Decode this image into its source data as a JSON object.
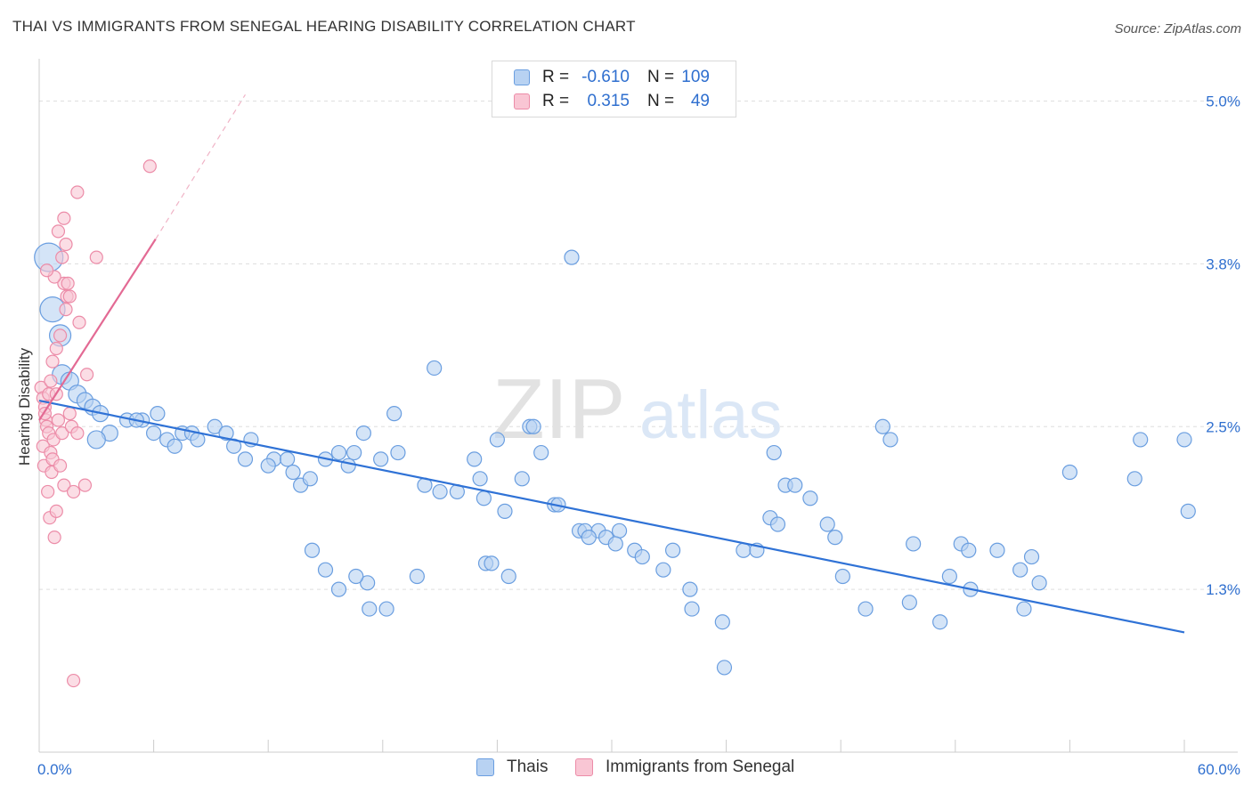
{
  "title": "THAI VS IMMIGRANTS FROM SENEGAL HEARING DISABILITY CORRELATION CHART",
  "source": "Source: ZipAtlas.com",
  "watermark": {
    "zip": "ZIP",
    "atlas": "atlas"
  },
  "colors": {
    "thai_fill": "#b8d2f2",
    "thai_stroke": "#6a9ee0",
    "thai_line": "#2f72d6",
    "senegal_fill": "#f9c6d4",
    "senegal_stroke": "#ec8ca8",
    "senegal_line": "#e36a94",
    "accent_text": "#2f6fcf",
    "grid": "#dddddd"
  },
  "stats_legend": {
    "rows": [
      {
        "r_label": "R =",
        "r_value": "-0.610",
        "n_label": "N =",
        "n_value": "109"
      },
      {
        "r_label": "R =",
        "r_value": "0.315",
        "n_label": "N =",
        "n_value": "49"
      }
    ]
  },
  "bottom_legend": {
    "thai": "Thais",
    "senegal": "Immigrants from Senegal"
  },
  "chart_data": {
    "type": "scatter",
    "title": "THAI VS IMMIGRANTS FROM SENEGAL HEARING DISABILITY CORRELATION CHART",
    "xlabel": "",
    "ylabel": "Hearing Disability",
    "xlim": [
      0,
      60
    ],
    "ylim": [
      0,
      5.25
    ],
    "x_tick_labels": [
      "0.0%",
      "60.0%"
    ],
    "y_ticks": [
      {
        "value": 1.25,
        "label": "1.3%"
      },
      {
        "value": 2.5,
        "label": "2.5%"
      },
      {
        "value": 3.75,
        "label": "3.8%"
      },
      {
        "value": 5.0,
        "label": "5.0%"
      }
    ],
    "series": [
      {
        "name": "Thais",
        "r": -0.61,
        "n": 109,
        "trend": {
          "x0": 0,
          "y0": 2.7,
          "x1": 60,
          "y1": 0.92
        },
        "points": [
          [
            0.5,
            3.8,
            16
          ],
          [
            0.7,
            3.4,
            14
          ],
          [
            1.1,
            3.2,
            12
          ],
          [
            1.2,
            2.9,
            11
          ],
          [
            1.6,
            2.85,
            10
          ],
          [
            2.0,
            2.75,
            10
          ],
          [
            2.4,
            2.7,
            9
          ],
          [
            2.8,
            2.65,
            9
          ],
          [
            3.2,
            2.6,
            9
          ],
          [
            3.7,
            2.45,
            9
          ],
          [
            3.0,
            2.4,
            10
          ],
          [
            4.6,
            2.55,
            8
          ],
          [
            5.4,
            2.55,
            8
          ],
          [
            5.1,
            2.55,
            8
          ],
          [
            6.2,
            2.6,
            8
          ],
          [
            6.0,
            2.45,
            8
          ],
          [
            7.5,
            2.45,
            8
          ],
          [
            8.0,
            2.45,
            8
          ],
          [
            6.7,
            2.4,
            8
          ],
          [
            7.1,
            2.35,
            8
          ],
          [
            8.3,
            2.4,
            8
          ],
          [
            9.2,
            2.5,
            8
          ],
          [
            9.8,
            2.45,
            8
          ],
          [
            10.2,
            2.35,
            8
          ],
          [
            11.1,
            2.4,
            8
          ],
          [
            10.8,
            2.25,
            8
          ],
          [
            12.3,
            2.25,
            8
          ],
          [
            12.0,
            2.2,
            8
          ],
          [
            13.0,
            2.25,
            8
          ],
          [
            13.3,
            2.15,
            8
          ],
          [
            13.7,
            2.05,
            8
          ],
          [
            14.2,
            2.1,
            8
          ],
          [
            15.0,
            2.25,
            8
          ],
          [
            15.7,
            2.3,
            8
          ],
          [
            16.2,
            2.2,
            8
          ],
          [
            16.5,
            2.3,
            8
          ],
          [
            17.0,
            2.45,
            8
          ],
          [
            17.9,
            2.25,
            8
          ],
          [
            18.8,
            2.3,
            8
          ],
          [
            18.6,
            2.6,
            8
          ],
          [
            20.7,
            2.95,
            8
          ],
          [
            20.2,
            2.05,
            8
          ],
          [
            21.0,
            2.0,
            8
          ],
          [
            21.9,
            2.0,
            8
          ],
          [
            22.8,
            2.25,
            8
          ],
          [
            23.1,
            2.1,
            8
          ],
          [
            23.3,
            1.95,
            8
          ],
          [
            24.0,
            2.4,
            8
          ],
          [
            24.4,
            1.85,
            8
          ],
          [
            25.3,
            2.1,
            8
          ],
          [
            25.7,
            2.5,
            8
          ],
          [
            25.9,
            2.5,
            8
          ],
          [
            26.3,
            2.3,
            8
          ],
          [
            27.0,
            1.9,
            8
          ],
          [
            27.2,
            1.9,
            8
          ],
          [
            27.9,
            3.8,
            8
          ],
          [
            28.3,
            1.7,
            8
          ],
          [
            28.6,
            1.7,
            8
          ],
          [
            29.3,
            1.7,
            8
          ],
          [
            29.7,
            1.65,
            8
          ],
          [
            30.4,
            1.7,
            8
          ],
          [
            19.8,
            1.35,
            8
          ],
          [
            17.2,
            1.3,
            8
          ],
          [
            15.0,
            1.4,
            8
          ],
          [
            14.3,
            1.55,
            8
          ],
          [
            15.7,
            1.25,
            8
          ],
          [
            16.6,
            1.35,
            8
          ],
          [
            17.3,
            1.1,
            8
          ],
          [
            18.2,
            1.1,
            8
          ],
          [
            23.4,
            1.45,
            8
          ],
          [
            23.7,
            1.45,
            8
          ],
          [
            24.6,
            1.35,
            8
          ],
          [
            28.8,
            1.65,
            8
          ],
          [
            30.2,
            1.6,
            8
          ],
          [
            31.2,
            1.55,
            8
          ],
          [
            31.6,
            1.5,
            8
          ],
          [
            32.7,
            1.4,
            8
          ],
          [
            33.2,
            1.55,
            8
          ],
          [
            34.1,
            1.25,
            8
          ],
          [
            34.2,
            1.1,
            8
          ],
          [
            35.8,
            1.0,
            8
          ],
          [
            35.9,
            0.65,
            8
          ],
          [
            36.9,
            1.55,
            8
          ],
          [
            37.6,
            1.55,
            8
          ],
          [
            38.3,
            1.8,
            8
          ],
          [
            38.7,
            1.75,
            8
          ],
          [
            38.5,
            2.3,
            8
          ],
          [
            39.1,
            2.05,
            8
          ],
          [
            39.6,
            2.05,
            8
          ],
          [
            40.4,
            1.95,
            8
          ],
          [
            41.3,
            1.75,
            8
          ],
          [
            41.7,
            1.65,
            8
          ],
          [
            42.1,
            1.35,
            8
          ],
          [
            43.3,
            1.1,
            8
          ],
          [
            44.2,
            2.5,
            8
          ],
          [
            44.6,
            2.4,
            8
          ],
          [
            45.8,
            1.6,
            8
          ],
          [
            45.6,
            1.15,
            8
          ],
          [
            47.2,
            1.0,
            8
          ],
          [
            47.7,
            1.35,
            8
          ],
          [
            48.3,
            1.6,
            8
          ],
          [
            48.7,
            1.55,
            8
          ],
          [
            48.8,
            1.25,
            8
          ],
          [
            50.2,
            1.55,
            8
          ],
          [
            51.4,
            1.4,
            8
          ],
          [
            51.6,
            1.1,
            8
          ],
          [
            52.0,
            1.5,
            8
          ],
          [
            52.4,
            1.3,
            8
          ],
          [
            54.0,
            2.15,
            8
          ],
          [
            57.7,
            2.4,
            8
          ],
          [
            57.4,
            2.1,
            8
          ],
          [
            60.0,
            2.4,
            8
          ],
          [
            60.2,
            1.85,
            8
          ]
        ]
      },
      {
        "name": "Immigrants from Senegal",
        "r": 0.315,
        "n": 49,
        "trend": {
          "x0": 0,
          "y0": 2.55,
          "x1": 6.1,
          "y1": 3.94
        },
        "trend_extension": {
          "x0": 6.1,
          "y0": 3.94,
          "x1": 10.8,
          "y1": 5.05
        },
        "points": [
          [
            0.1,
            2.8,
            7
          ],
          [
            0.2,
            2.72,
            7
          ],
          [
            0.3,
            2.65,
            7
          ],
          [
            0.35,
            2.55,
            7
          ],
          [
            0.4,
            2.5,
            7
          ],
          [
            0.5,
            2.45,
            7
          ],
          [
            0.2,
            2.35,
            7
          ],
          [
            0.6,
            2.3,
            7
          ],
          [
            0.25,
            2.2,
            7
          ],
          [
            0.7,
            2.25,
            7
          ],
          [
            0.45,
            2.0,
            7
          ],
          [
            0.55,
            1.8,
            7
          ],
          [
            0.8,
            1.65,
            7
          ],
          [
            0.9,
            1.85,
            7
          ],
          [
            0.65,
            2.15,
            7
          ],
          [
            0.75,
            2.4,
            7
          ],
          [
            0.3,
            2.6,
            7
          ],
          [
            0.5,
            2.75,
            7
          ],
          [
            0.6,
            2.85,
            7
          ],
          [
            0.7,
            3.0,
            7
          ],
          [
            0.9,
            2.75,
            7
          ],
          [
            1.0,
            2.55,
            7
          ],
          [
            1.2,
            2.45,
            7
          ],
          [
            1.1,
            2.2,
            7
          ],
          [
            1.3,
            2.05,
            7
          ],
          [
            1.6,
            2.6,
            7
          ],
          [
            1.7,
            2.5,
            7
          ],
          [
            1.8,
            2.0,
            7
          ],
          [
            2.0,
            2.45,
            7
          ],
          [
            2.4,
            2.05,
            7
          ],
          [
            2.5,
            2.9,
            7
          ],
          [
            2.1,
            3.3,
            7
          ],
          [
            1.4,
            3.4,
            7
          ],
          [
            1.1,
            3.2,
            7
          ],
          [
            1.3,
            3.6,
            7
          ],
          [
            1.45,
            3.5,
            7
          ],
          [
            1.5,
            3.6,
            7
          ],
          [
            1.6,
            3.5,
            7
          ],
          [
            1.2,
            3.8,
            7
          ],
          [
            1.4,
            3.9,
            7
          ],
          [
            0.8,
            3.65,
            7
          ],
          [
            1.0,
            4.0,
            7
          ],
          [
            1.3,
            4.1,
            7
          ],
          [
            2.0,
            4.3,
            7
          ],
          [
            3.0,
            3.8,
            7
          ],
          [
            5.8,
            4.5,
            7
          ],
          [
            1.8,
            0.55,
            7
          ],
          [
            0.9,
            3.1,
            7
          ],
          [
            0.4,
            3.7,
            7
          ]
        ]
      }
    ]
  }
}
